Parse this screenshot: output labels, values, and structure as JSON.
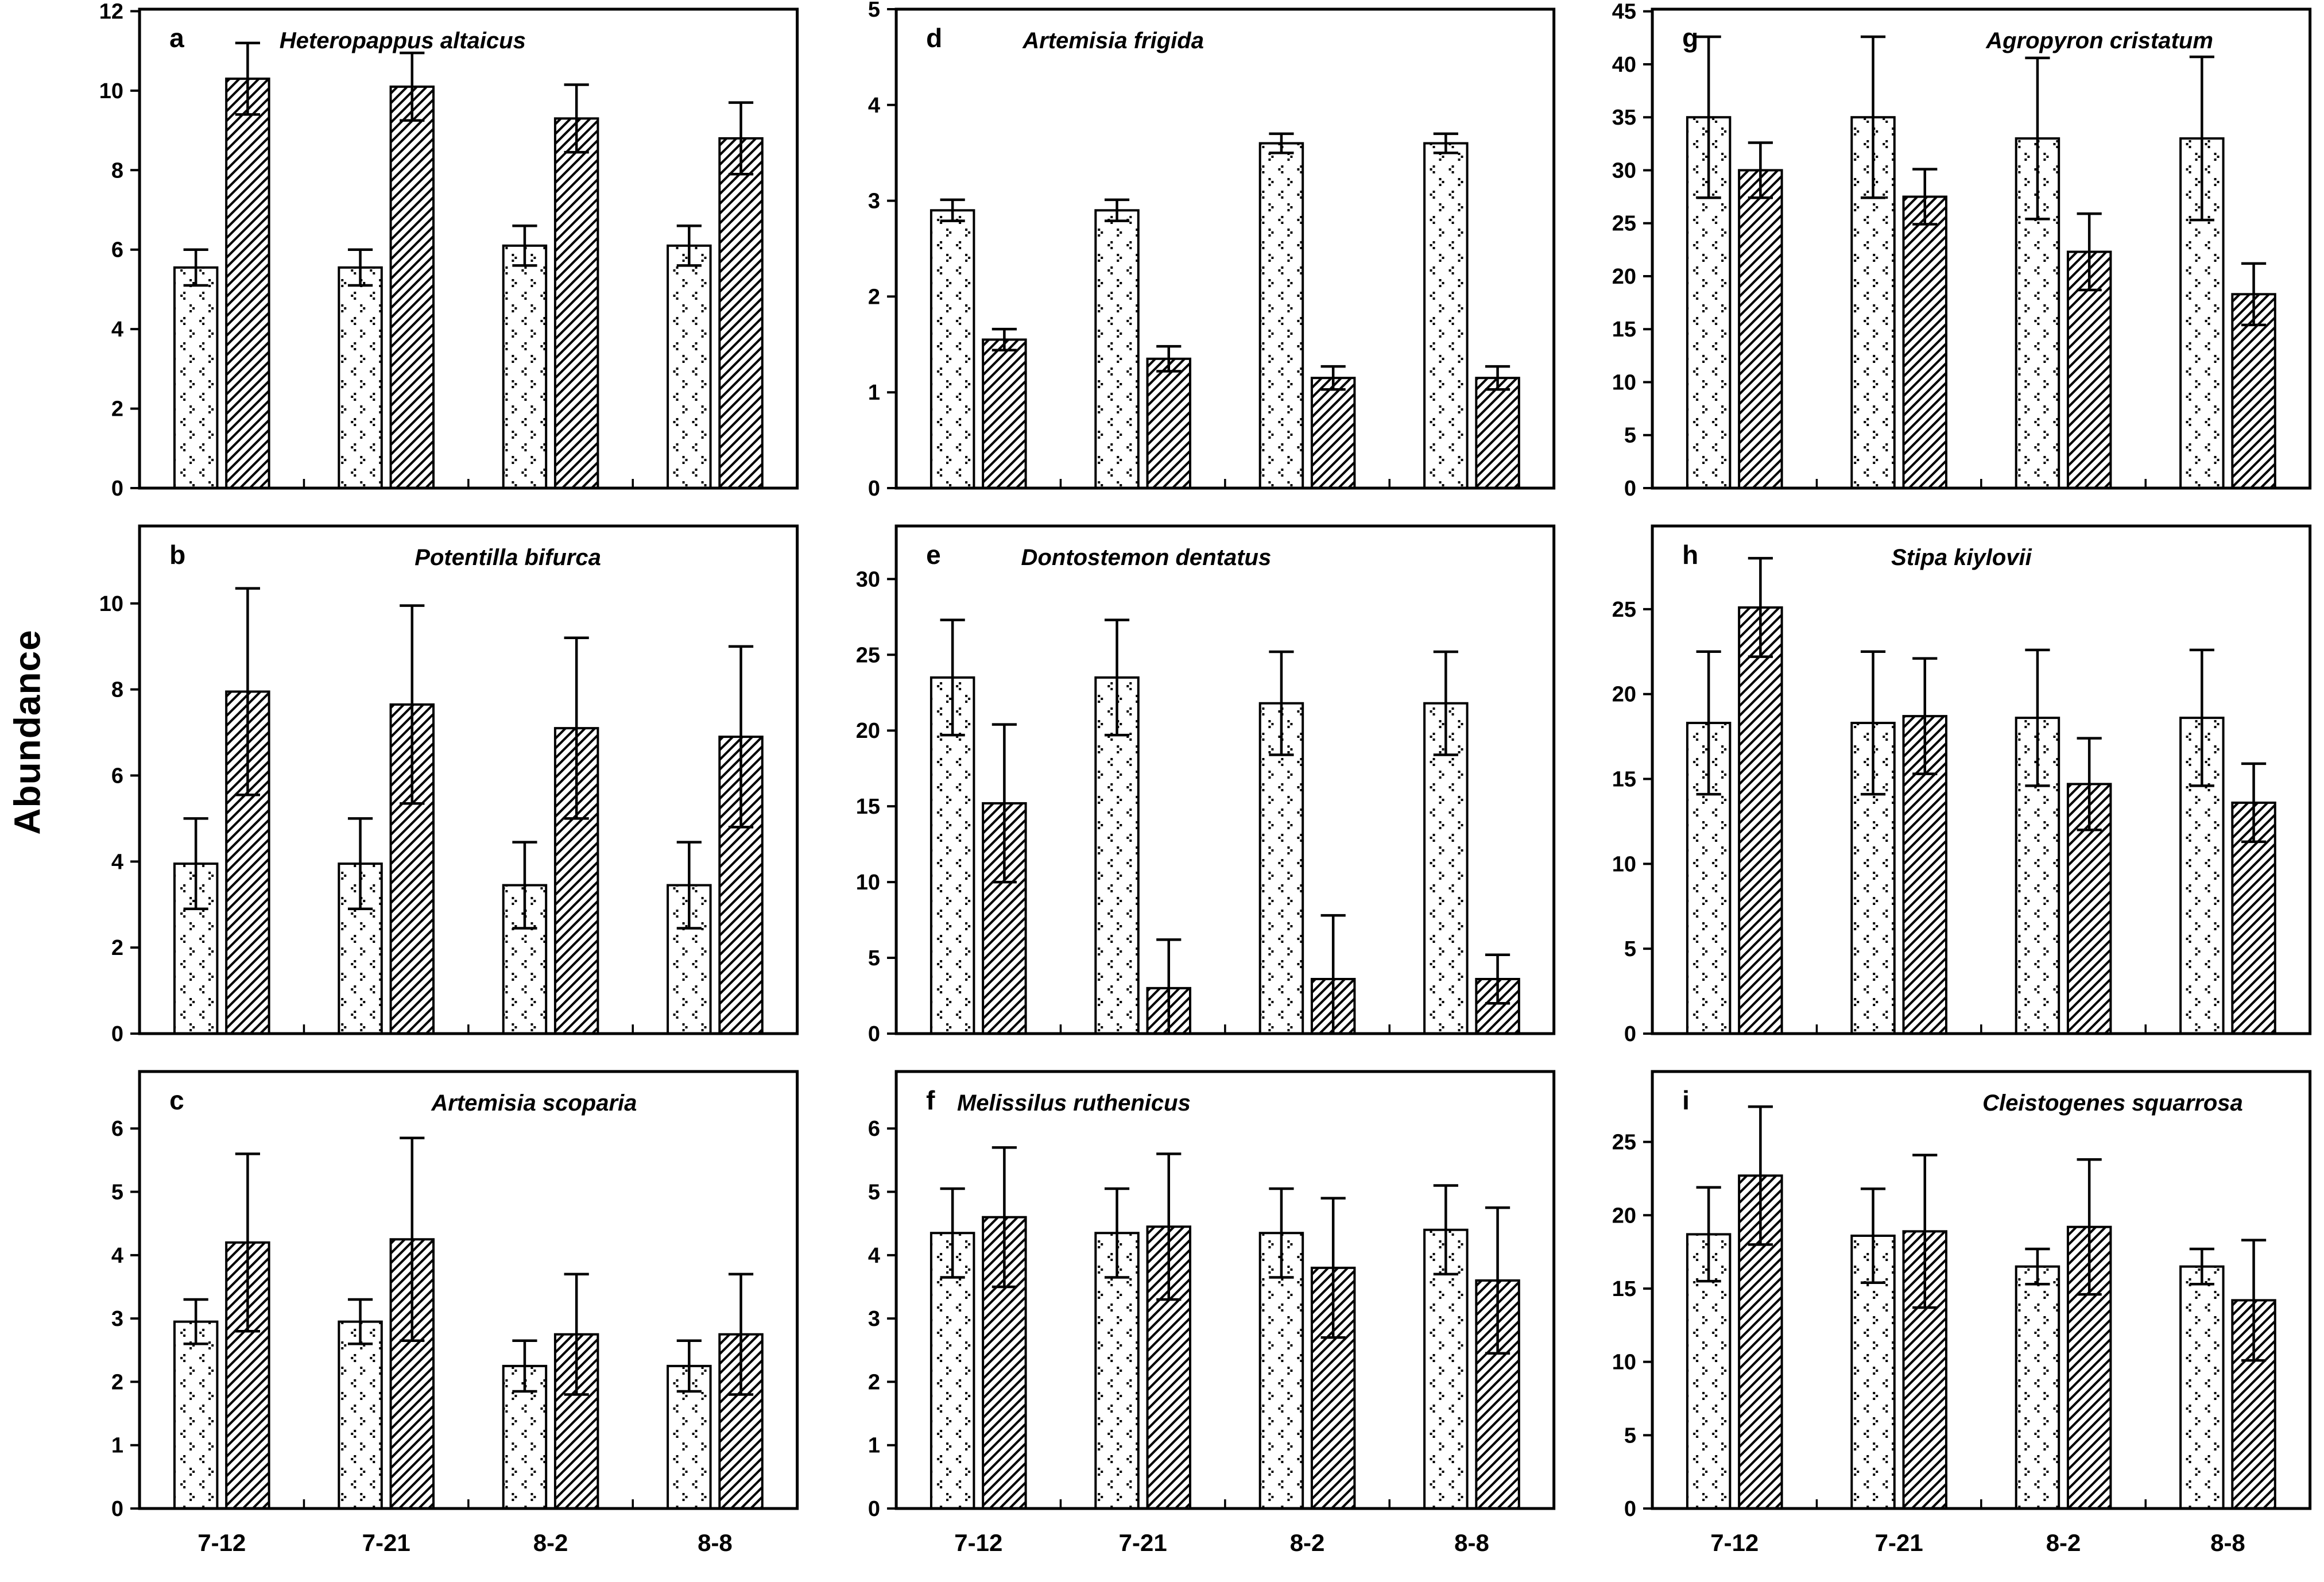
{
  "page": {
    "background": "#ffffff",
    "ink": "#000000"
  },
  "ylabel": "Abundance",
  "x_categories": [
    "7-12",
    "7-21",
    "8-2",
    "8-8"
  ],
  "series_patterns": [
    {
      "name": "dotted-diamond-fill",
      "description": "open bar with sparse chevron dots"
    },
    {
      "name": "diagonal-hatch-fill",
      "description": "bar with / diagonal hatching"
    }
  ],
  "chart_data": [
    {
      "panel": "a",
      "title": "Heteropappus altaicus",
      "type": "bar",
      "categories": [
        "7-12",
        "7-21",
        "8-2",
        "8-8"
      ],
      "ylim": [
        0,
        12.05
      ],
      "yticks": [
        0,
        2,
        4,
        6,
        8,
        10,
        12
      ],
      "grid": false,
      "legend": "none",
      "title_x": 0.4,
      "show_x_labels": false,
      "series": [
        {
          "name": "dotted",
          "values": [
            5.55,
            5.55,
            6.1,
            6.1
          ],
          "errors": [
            0.45,
            0.45,
            0.5,
            0.5
          ]
        },
        {
          "name": "hatched",
          "values": [
            10.3,
            10.1,
            9.3,
            8.8
          ],
          "errors": [
            0.9,
            0.85,
            0.85,
            0.9
          ]
        }
      ]
    },
    {
      "panel": "d",
      "title": "Artemisia frigida",
      "type": "bar",
      "categories": [
        "7-12",
        "7-21",
        "8-2",
        "8-8"
      ],
      "ylim": [
        0,
        5
      ],
      "yticks": [
        0,
        1,
        2,
        3,
        4,
        5
      ],
      "grid": false,
      "legend": "none",
      "title_x": 0.33,
      "show_x_labels": false,
      "series": [
        {
          "name": "dotted",
          "values": [
            2.9,
            2.9,
            3.6,
            3.6
          ],
          "errors": [
            0.11,
            0.11,
            0.1,
            0.1
          ]
        },
        {
          "name": "hatched",
          "values": [
            1.55,
            1.35,
            1.15,
            1.15
          ],
          "errors": [
            0.11,
            0.13,
            0.12,
            0.12
          ]
        }
      ]
    },
    {
      "panel": "g",
      "title": "Agropyron cristatum",
      "type": "bar",
      "categories": [
        "7-12",
        "7-21",
        "8-2",
        "8-8"
      ],
      "ylim": [
        0,
        45.2
      ],
      "yticks": [
        0,
        5,
        10,
        15,
        20,
        25,
        30,
        35,
        40,
        45
      ],
      "grid": false,
      "legend": "none",
      "title_x": 0.68,
      "show_x_labels": false,
      "series": [
        {
          "name": "dotted",
          "values": [
            35,
            35,
            33,
            33
          ],
          "errors": [
            7.6,
            7.6,
            7.6,
            7.7
          ]
        },
        {
          "name": "hatched",
          "values": [
            30,
            27.5,
            22.3,
            18.3
          ],
          "errors": [
            2.6,
            2.6,
            3.6,
            2.9
          ]
        }
      ]
    },
    {
      "panel": "b",
      "title": "Potentilla bifurca",
      "type": "bar",
      "categories": [
        "7-12",
        "7-21",
        "8-2",
        "8-8"
      ],
      "ylim": [
        0,
        11.8
      ],
      "yticks": [
        0,
        2,
        4,
        6,
        8,
        10
      ],
      "grid": false,
      "legend": "none",
      "title_x": 0.56,
      "show_x_labels": false,
      "series": [
        {
          "name": "dotted",
          "values": [
            3.95,
            3.95,
            3.45,
            3.45
          ],
          "errors": [
            1.05,
            1.05,
            1.0,
            1.0
          ]
        },
        {
          "name": "hatched",
          "values": [
            7.95,
            7.65,
            7.1,
            6.9
          ],
          "errors": [
            2.4,
            2.3,
            2.1,
            2.1
          ]
        }
      ]
    },
    {
      "panel": "e",
      "title": "Dontostemon dentatus",
      "type": "bar",
      "categories": [
        "7-12",
        "7-21",
        "8-2",
        "8-8"
      ],
      "ylim": [
        0,
        33.5
      ],
      "yticks": [
        0,
        5,
        10,
        15,
        20,
        25,
        30
      ],
      "grid": false,
      "legend": "none",
      "title_x": 0.38,
      "show_x_labels": false,
      "series": [
        {
          "name": "dotted",
          "values": [
            23.5,
            23.5,
            21.8,
            21.8
          ],
          "errors": [
            3.8,
            3.8,
            3.4,
            3.4
          ]
        },
        {
          "name": "hatched",
          "values": [
            15.2,
            3.0,
            3.6,
            3.6
          ],
          "errors": [
            5.2,
            3.2,
            4.2,
            1.6
          ]
        }
      ]
    },
    {
      "panel": "h",
      "title": "Stipa kiylovii",
      "type": "bar",
      "categories": [
        "7-12",
        "7-21",
        "8-2",
        "8-8"
      ],
      "ylim": [
        0,
        29.9
      ],
      "yticks": [
        0,
        5,
        10,
        15,
        20,
        25
      ],
      "grid": false,
      "legend": "none",
      "title_x": 0.47,
      "show_x_labels": false,
      "series": [
        {
          "name": "dotted",
          "values": [
            18.3,
            18.3,
            18.6,
            18.6
          ],
          "errors": [
            4.2,
            4.2,
            4.0,
            4.0
          ]
        },
        {
          "name": "hatched",
          "values": [
            25.1,
            18.7,
            14.7,
            13.6
          ],
          "errors": [
            2.9,
            3.4,
            2.7,
            2.3
          ]
        }
      ]
    },
    {
      "panel": "c",
      "title": "Artemisia scoparia",
      "type": "bar",
      "categories": [
        "7-12",
        "7-21",
        "8-2",
        "8-8"
      ],
      "ylim": [
        0,
        6.9
      ],
      "yticks": [
        0,
        1,
        2,
        3,
        4,
        5,
        6
      ],
      "grid": false,
      "legend": "none",
      "title_x": 0.6,
      "show_x_labels": true,
      "series": [
        {
          "name": "dotted",
          "values": [
            2.95,
            2.95,
            2.25,
            2.25
          ],
          "errors": [
            0.35,
            0.35,
            0.4,
            0.4
          ]
        },
        {
          "name": "hatched",
          "values": [
            4.2,
            4.25,
            2.75,
            2.75
          ],
          "errors": [
            1.4,
            1.6,
            0.95,
            0.95
          ]
        }
      ]
    },
    {
      "panel": "f",
      "title": "Melissilus ruthenicus",
      "type": "bar",
      "categories": [
        "7-12",
        "7-21",
        "8-2",
        "8-8"
      ],
      "ylim": [
        0,
        6.9
      ],
      "yticks": [
        0,
        1,
        2,
        3,
        4,
        5,
        6
      ],
      "grid": false,
      "legend": "none",
      "title_x": 0.27,
      "show_x_labels": true,
      "series": [
        {
          "name": "dotted",
          "values": [
            4.35,
            4.35,
            4.35,
            4.4
          ],
          "errors": [
            0.7,
            0.7,
            0.7,
            0.7
          ]
        },
        {
          "name": "hatched",
          "values": [
            4.6,
            4.45,
            3.8,
            3.6
          ],
          "errors": [
            1.1,
            1.15,
            1.1,
            1.15
          ]
        }
      ]
    },
    {
      "panel": "i",
      "title": "Cleistogenes squarrosa",
      "type": "bar",
      "categories": [
        "7-12",
        "7-21",
        "8-2",
        "8-8"
      ],
      "ylim": [
        0,
        29.8
      ],
      "yticks": [
        0,
        5,
        10,
        15,
        20,
        25
      ],
      "grid": false,
      "legend": "none",
      "title_x": 0.7,
      "show_x_labels": true,
      "series": [
        {
          "name": "dotted",
          "values": [
            18.7,
            18.6,
            16.5,
            16.5
          ],
          "errors": [
            3.2,
            3.2,
            1.2,
            1.2
          ]
        },
        {
          "name": "hatched",
          "values": [
            22.7,
            18.9,
            19.2,
            14.2
          ],
          "errors": [
            4.7,
            5.2,
            4.6,
            4.1
          ]
        }
      ]
    }
  ]
}
